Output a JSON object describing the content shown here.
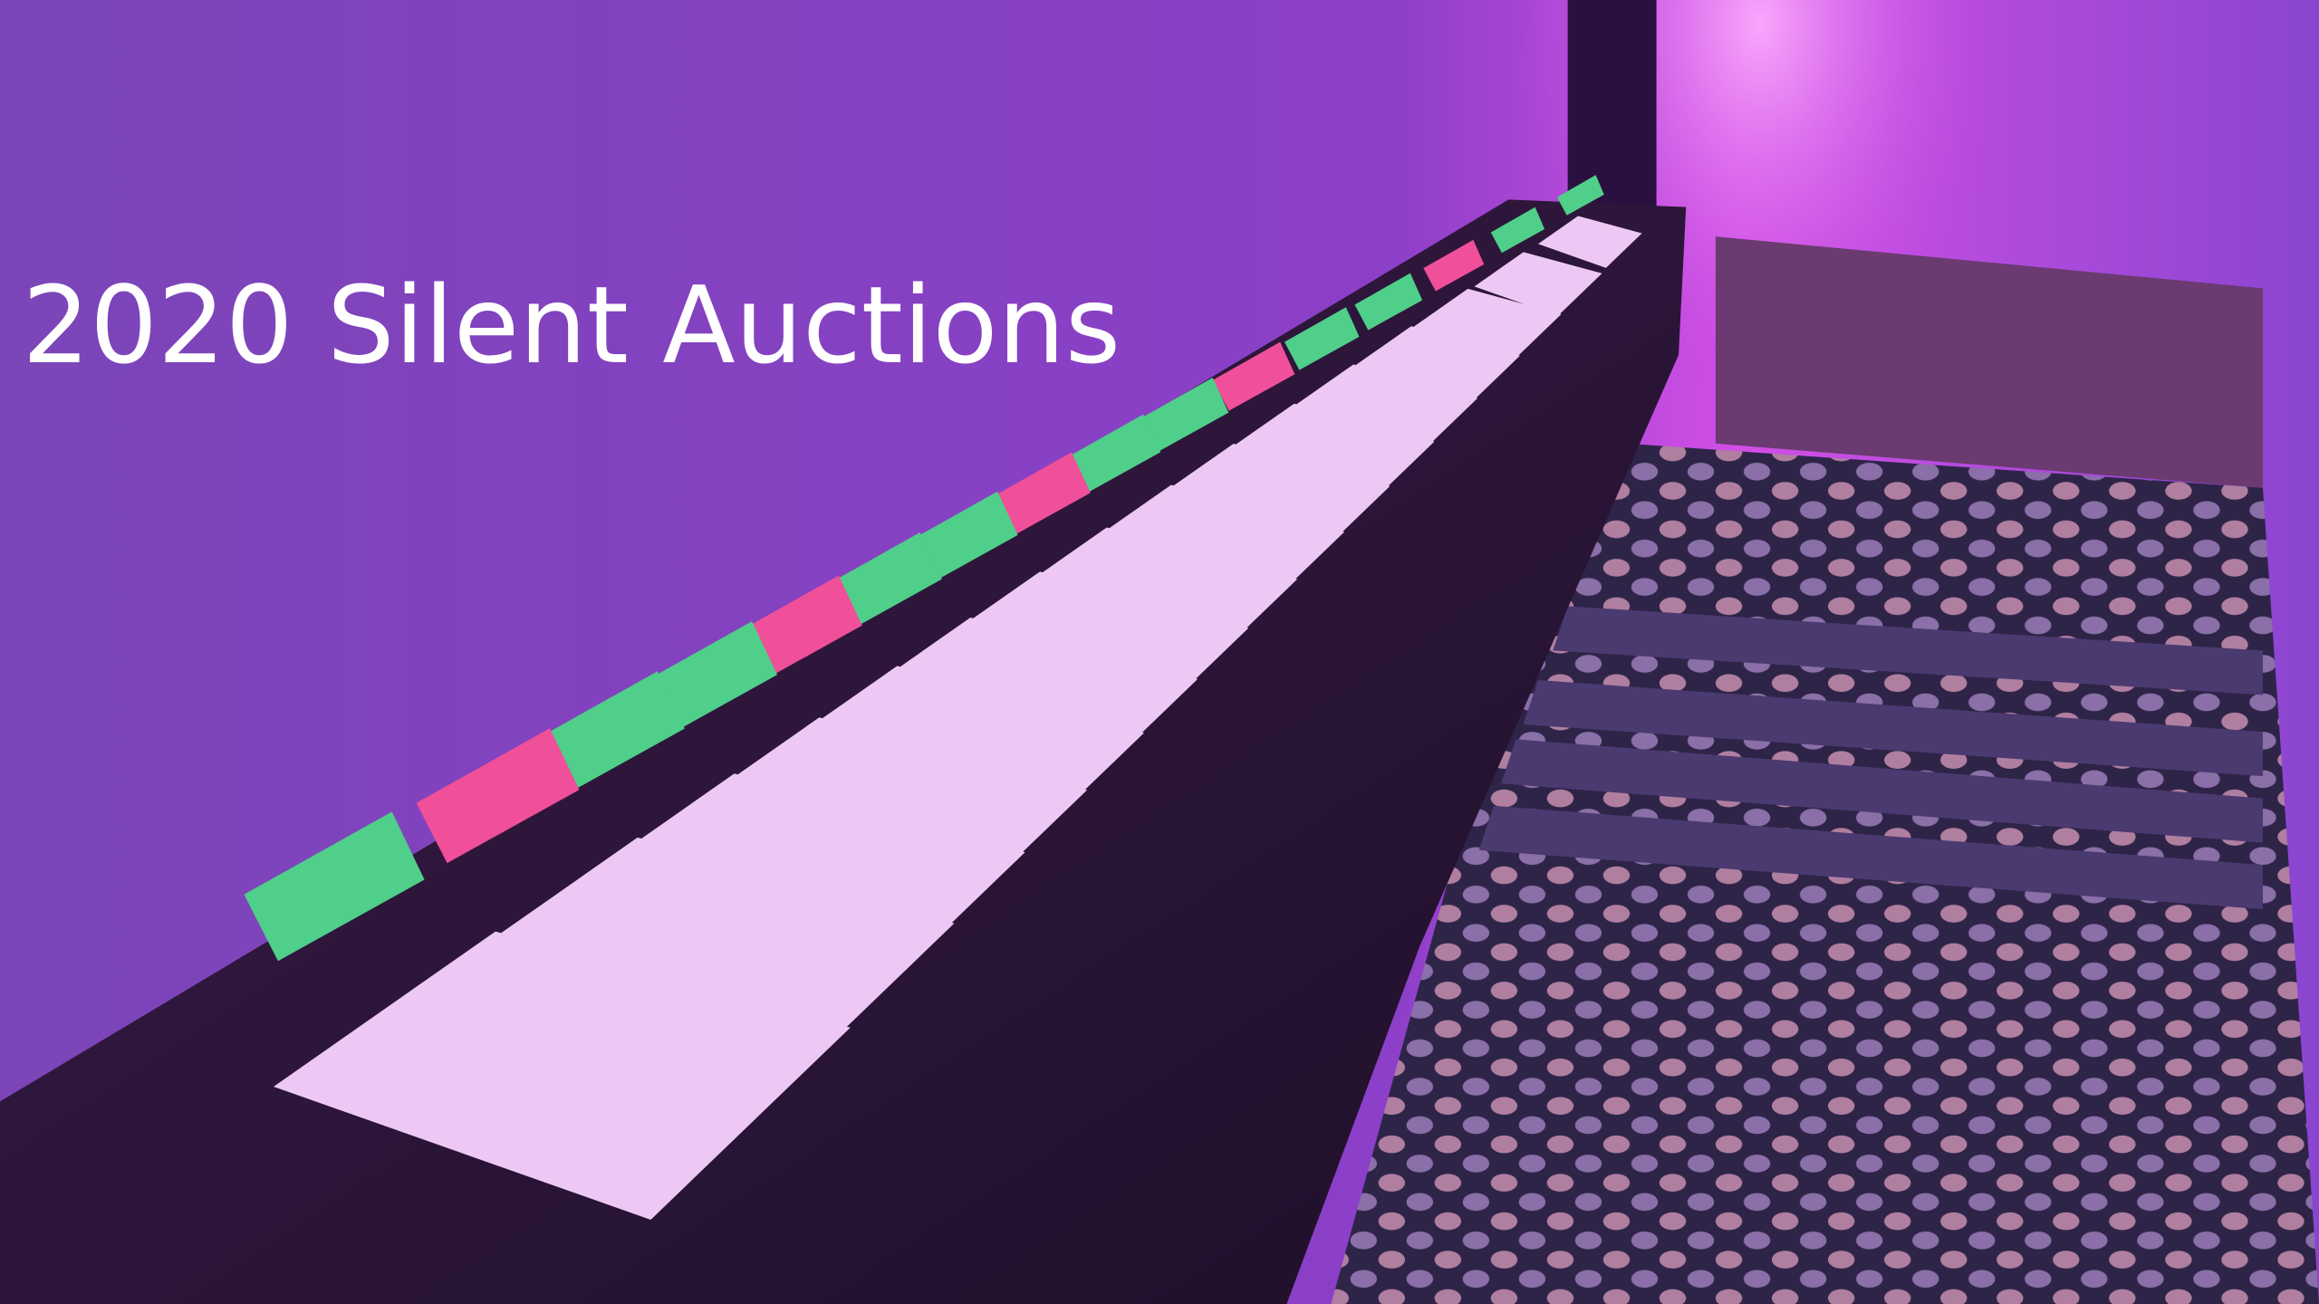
{
  "slide": {
    "title": "2020 Silent Auctions"
  }
}
